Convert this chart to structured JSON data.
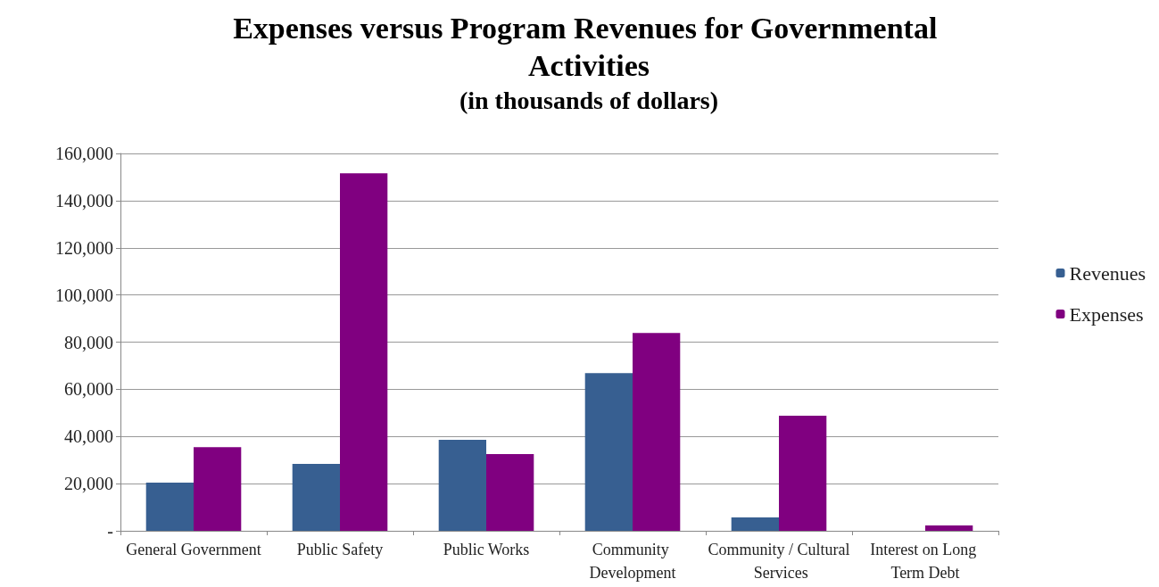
{
  "chart_data": {
    "type": "bar",
    "title": "Expenses versus Program Revenues for Governmental Activities",
    "subtitle": "(in thousands of dollars)",
    "categories": [
      "General Government",
      "Public Safety",
      "Public Works",
      "Community Development",
      "Community / Cultural Services",
      "Interest on Long Term Debt"
    ],
    "series": [
      {
        "name": "Revenues",
        "color": "#375f91",
        "values": [
          20400,
          28400,
          38600,
          66900,
          5700,
          0
        ]
      },
      {
        "name": "Expenses",
        "color": "#800080",
        "values": [
          35500,
          151600,
          32500,
          83900,
          48800,
          2300
        ]
      }
    ],
    "ylim": [
      0,
      160000
    ],
    "yticks": [
      {
        "value": 0,
        "label": "-"
      },
      {
        "value": 20000,
        "label": "20,000"
      },
      {
        "value": 40000,
        "label": "40,000"
      },
      {
        "value": 60000,
        "label": "60,000"
      },
      {
        "value": 80000,
        "label": "80,000"
      },
      {
        "value": 100000,
        "label": "100,000"
      },
      {
        "value": 120000,
        "label": "120,000"
      },
      {
        "value": 140000,
        "label": "140,000"
      },
      {
        "value": 160000,
        "label": "160,000"
      }
    ],
    "grid": "y",
    "legend": "right"
  }
}
